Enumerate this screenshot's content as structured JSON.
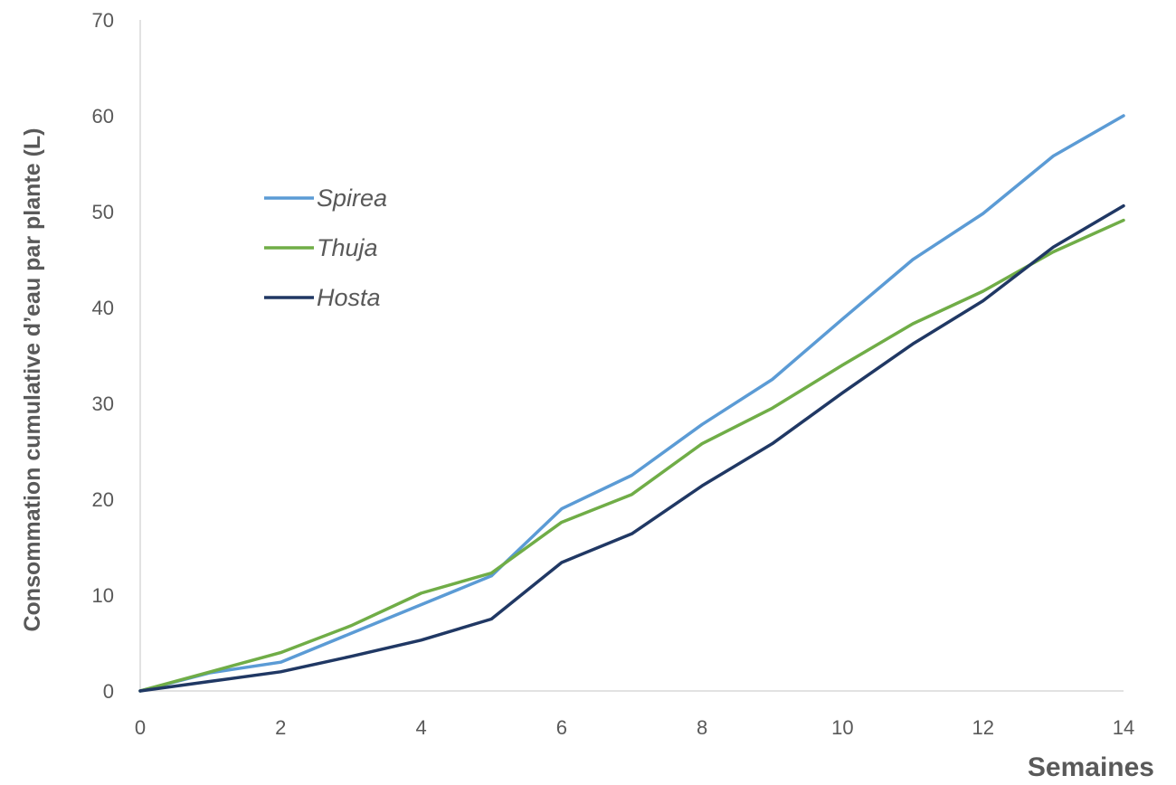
{
  "chart_data": {
    "type": "line",
    "title": "",
    "xlabel": "Semaines",
    "ylabel": "Consommation cumulative d’eau par plante (L)",
    "xlim": [
      0,
      14
    ],
    "ylim": [
      0,
      70
    ],
    "xticks": [
      0,
      2,
      4,
      6,
      8,
      10,
      12,
      14
    ],
    "yticks": [
      0,
      10,
      20,
      30,
      40,
      50,
      60,
      70
    ],
    "grid": false,
    "legend_position": "top-left",
    "x": [
      0,
      1,
      2,
      3,
      4,
      5,
      6,
      7,
      8,
      9,
      10,
      11,
      12,
      13,
      14
    ],
    "series": [
      {
        "name": "Spirea",
        "color": "#5b9bd5",
        "values": [
          0,
          1.9,
          3.0,
          6.0,
          9.0,
          12.0,
          19.0,
          22.5,
          27.8,
          32.5,
          38.8,
          45.0,
          49.8,
          55.8,
          60.0
        ]
      },
      {
        "name": "Thuja",
        "color": "#70ad47",
        "values": [
          0,
          2.0,
          4.0,
          6.8,
          10.2,
          12.3,
          17.6,
          20.5,
          25.8,
          29.5,
          34.0,
          38.3,
          41.7,
          45.8,
          49.1
        ]
      },
      {
        "name": "Hosta",
        "color": "#203864",
        "values": [
          0,
          1.0,
          2.0,
          3.6,
          5.3,
          7.5,
          13.4,
          16.4,
          21.4,
          25.8,
          31.1,
          36.2,
          40.7,
          46.3,
          50.6
        ]
      }
    ]
  }
}
